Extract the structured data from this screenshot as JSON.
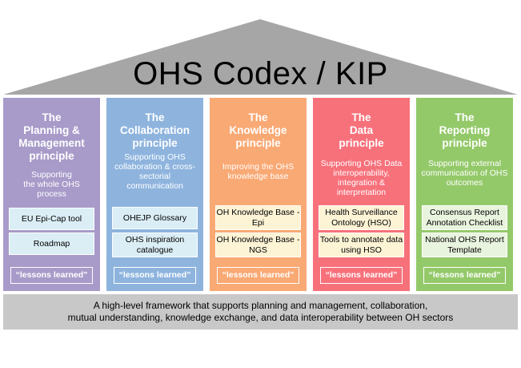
{
  "title": "OHS Codex / KIP",
  "colors": {
    "roof": "#a6a6a6",
    "base": "#c8c8c8"
  },
  "pillars": [
    {
      "title": "The\nPlanning &\nManagement\nprinciple",
      "description": "Supporting\nthe whole OHS\nprocess",
      "color": "#a89bc9",
      "box_color": "#dbeef6",
      "items": [
        "EU Epi-Cap tool",
        "Roadmap"
      ],
      "lessons": "“lessons learned”"
    },
    {
      "title": "The\nCollaboration\nprinciple",
      "description": "Supporting OHS\ncollaboration & cross-\nsectorial\ncommunication",
      "color": "#8eb4de",
      "box_color": "#dbeef6",
      "items": [
        "OHEJP Glossary",
        "OHS inspiration\ncatalogue"
      ],
      "lessons": "“lessons learned”"
    },
    {
      "title": "The\nKnowledge\nprinciple",
      "description": "Improving the OHS\nknowledge base",
      "color": "#f9a974",
      "box_color": "#fdf3d5",
      "items": [
        "OH Knowledge Base -\nEpi",
        "OH Knowledge Base -\nNGS"
      ],
      "lessons": "“lessons learned”"
    },
    {
      "title": "The\nData\nprinciple",
      "description": "Supporting OHS Data\ninteroperability,\nintegration &\ninterpretation",
      "color": "#f7717b",
      "box_color": "#fdf3d5",
      "items": [
        "Health Surveillance\nOntology (HSO)",
        "Tools to annotate data\nusing HSO"
      ],
      "lessons": "“lessons learned”"
    },
    {
      "title": "The\nReporting\nprinciple",
      "description": "Supporting external\ncommunication of OHS\noutcomes",
      "color": "#94c96a",
      "box_color": "#e9f4de",
      "items": [
        "Consensus Report\nAnnotation Checklist",
        "National OHS Report\nTemplate"
      ],
      "lessons": "“lessons learned”"
    }
  ],
  "base": {
    "text": "A high-level framework that supports planning and management, collaboration,\nmutual understanding, knowledge exchange, and data interoperability between OH sectors"
  }
}
